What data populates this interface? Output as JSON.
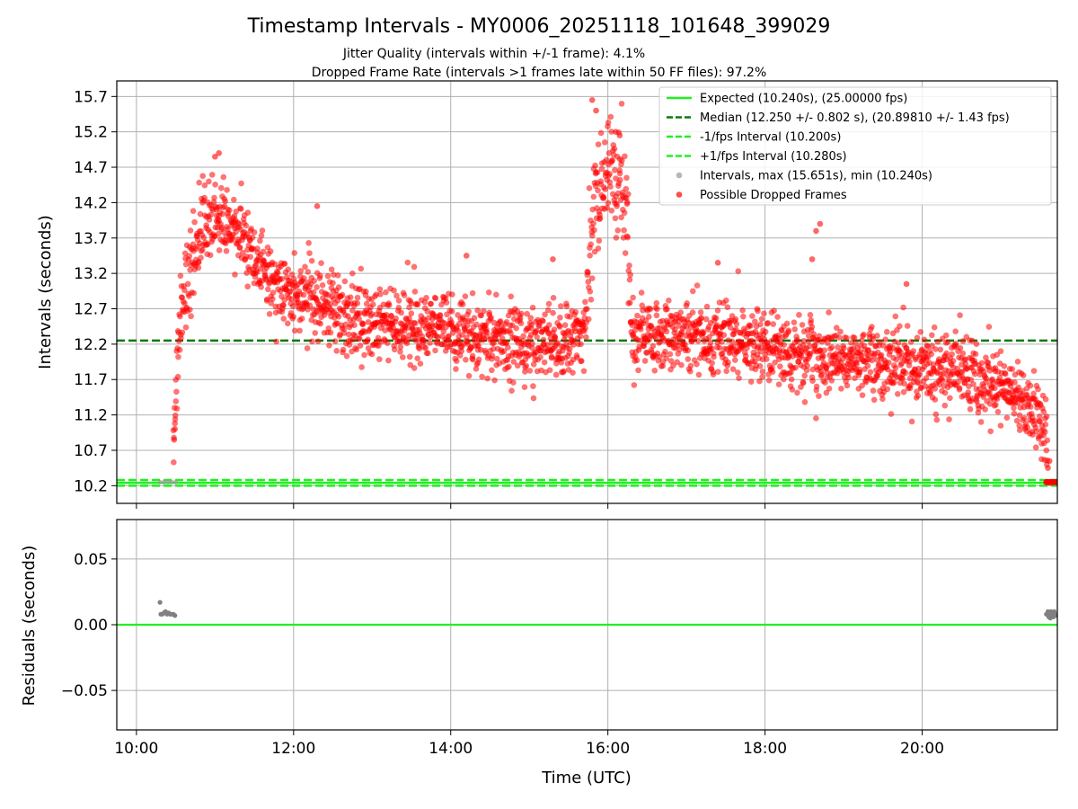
{
  "chart_data": [
    {
      "type": "scatter",
      "title": "Timestamp Intervals - MY0006_20251118_101648_399029",
      "subtitle_lines": [
        "Jitter Quality (intervals within +/-1 frame): 4.1%",
        "Dropped Frame Rate (intervals >1 frames late within 50 FF files): 97.2%"
      ],
      "ylabel": "Intervals (seconds)",
      "xlabel": "",
      "x_unit": "hours UTC",
      "xlim": [
        9.75,
        21.72
      ],
      "ylim": [
        9.95,
        15.92
      ],
      "yticks": [
        10.2,
        10.7,
        11.2,
        11.7,
        12.2,
        12.7,
        13.2,
        13.7,
        14.2,
        14.7,
        15.2,
        15.7
      ],
      "ytick_labels": [
        "10.2",
        "10.7",
        "11.2",
        "11.7",
        "12.2",
        "12.7",
        "13.2",
        "13.7",
        "14.2",
        "14.7",
        "15.2",
        "15.7"
      ],
      "xticks": [
        10,
        12,
        14,
        16,
        18,
        20
      ],
      "grid": true,
      "legend_position": "top-right",
      "reference_lines": [
        {
          "name": "Expected (10.240s), (25.00000 fps)",
          "y": 10.24,
          "color": "#22ee22",
          "style": "solid"
        },
        {
          "name": "Median (12.250 +/- 0.802 s), (20.89810 +/- 1.43 fps)",
          "y": 12.25,
          "color": "#0a7a0a",
          "style": "dashed"
        },
        {
          "name": "-1/fps Interval (10.200s)",
          "y": 10.2,
          "color": "#22ee22",
          "style": "dashed"
        },
        {
          "name": "+1/fps Interval (10.280s)",
          "y": 10.28,
          "color": "#22ee22",
          "style": "dashed"
        }
      ],
      "series": [
        {
          "name": "Intervals, max (15.651s), min (10.240s)",
          "color": "#999999",
          "points": [
            [
              10.3,
              10.25
            ],
            [
              10.35,
              10.25
            ],
            [
              10.4,
              10.25
            ],
            [
              10.45,
              10.25
            ],
            [
              10.5,
              10.25
            ],
            [
              21.6,
              10.25
            ],
            [
              21.65,
              10.25
            ],
            [
              21.7,
              10.25
            ]
          ]
        },
        {
          "name": "Possible Dropped Frames",
          "color": "#ff0000",
          "profile": [
            [
              10.47,
              10.9
            ],
            [
              10.55,
              12.4
            ],
            [
              10.65,
              13.1
            ],
            [
              10.8,
              13.8
            ],
            [
              11.0,
              14.0
            ],
            [
              11.1,
              14.1
            ],
            [
              11.2,
              13.9
            ],
            [
              11.4,
              13.6
            ],
            [
              11.6,
              13.2
            ],
            [
              12.0,
              12.9
            ],
            [
              12.5,
              12.7
            ],
            [
              13.0,
              12.5
            ],
            [
              13.5,
              12.45
            ],
            [
              14.0,
              12.4
            ],
            [
              14.5,
              12.3
            ],
            [
              15.0,
              12.2
            ],
            [
              15.5,
              12.3
            ],
            [
              15.72,
              12.5
            ],
            [
              15.8,
              13.9
            ],
            [
              16.0,
              14.6
            ],
            [
              16.15,
              14.4
            ],
            [
              16.25,
              13.9
            ],
            [
              16.3,
              12.3
            ],
            [
              17.0,
              12.3
            ],
            [
              17.5,
              12.25
            ],
            [
              18.0,
              12.2
            ],
            [
              18.5,
              12.0
            ],
            [
              19.0,
              12.0
            ],
            [
              19.5,
              11.95
            ],
            [
              20.0,
              11.9
            ],
            [
              20.5,
              11.85
            ],
            [
              21.0,
              11.6
            ],
            [
              21.3,
              11.4
            ],
            [
              21.55,
              11.1
            ],
            [
              21.6,
              10.7
            ]
          ],
          "tail_points": [
            [
              21.58,
              10.25
            ],
            [
              21.6,
              10.25
            ],
            [
              21.62,
              10.25
            ],
            [
              21.64,
              10.25
            ],
            [
              21.66,
              10.25
            ],
            [
              21.68,
              10.25
            ],
            [
              21.7,
              10.25
            ]
          ],
          "outliers": [
            [
              15.8,
              15.65
            ],
            [
              15.85,
              15.5
            ],
            [
              16.1,
              15.2
            ],
            [
              16.15,
              15.15
            ],
            [
              18.7,
              13.9
            ],
            [
              18.65,
              13.8
            ],
            [
              18.6,
              13.4
            ],
            [
              12.3,
              14.15
            ],
            [
              11.0,
              14.85
            ],
            [
              11.05,
              14.9
            ],
            [
              21.62,
              10.55
            ],
            [
              21.6,
              10.45
            ],
            [
              10.48,
              10.85
            ],
            [
              10.49,
              11.0
            ],
            [
              19.8,
              13.05
            ],
            [
              17.4,
              13.35
            ],
            [
              14.2,
              13.45
            ],
            [
              15.3,
              13.4
            ]
          ]
        }
      ]
    },
    {
      "type": "scatter",
      "ylabel": "Residuals (seconds)",
      "xlabel": "Time (UTC)",
      "xlim": [
        9.75,
        21.72
      ],
      "ylim": [
        -0.08,
        0.08
      ],
      "yticks": [
        -0.05,
        0.0,
        0.05
      ],
      "ytick_labels": [
        "−0.05",
        "0.00",
        "0.05"
      ],
      "xticks": [
        10,
        12,
        14,
        16,
        18,
        20
      ],
      "xtick_labels": [
        "10:00",
        "12:00",
        "14:00",
        "16:00",
        "18:00",
        "20:00"
      ],
      "grid": true,
      "reference_lines": [
        {
          "y": 0.0,
          "color": "#22ee22",
          "style": "solid"
        }
      ],
      "series": [
        {
          "color": "#808080",
          "points": [
            [
              10.3,
              0.017
            ],
            [
              10.31,
              0.008
            ],
            [
              10.33,
              0.008
            ],
            [
              10.35,
              0.009
            ],
            [
              10.37,
              0.01
            ],
            [
              10.39,
              0.008
            ],
            [
              10.41,
              0.009
            ],
            [
              10.43,
              0.008
            ],
            [
              10.45,
              0.008
            ],
            [
              10.47,
              0.008
            ],
            [
              10.49,
              0.007
            ],
            [
              21.58,
              0.008
            ],
            [
              21.6,
              0.01
            ],
            [
              21.61,
              0.006
            ],
            [
              21.62,
              0.009
            ],
            [
              21.63,
              0.005
            ],
            [
              21.64,
              0.01
            ],
            [
              21.65,
              0.007
            ],
            [
              21.66,
              0.009
            ],
            [
              21.67,
              0.006
            ],
            [
              21.68,
              0.01
            ],
            [
              21.69,
              0.008
            ],
            [
              21.7,
              0.007
            ]
          ]
        }
      ]
    }
  ]
}
